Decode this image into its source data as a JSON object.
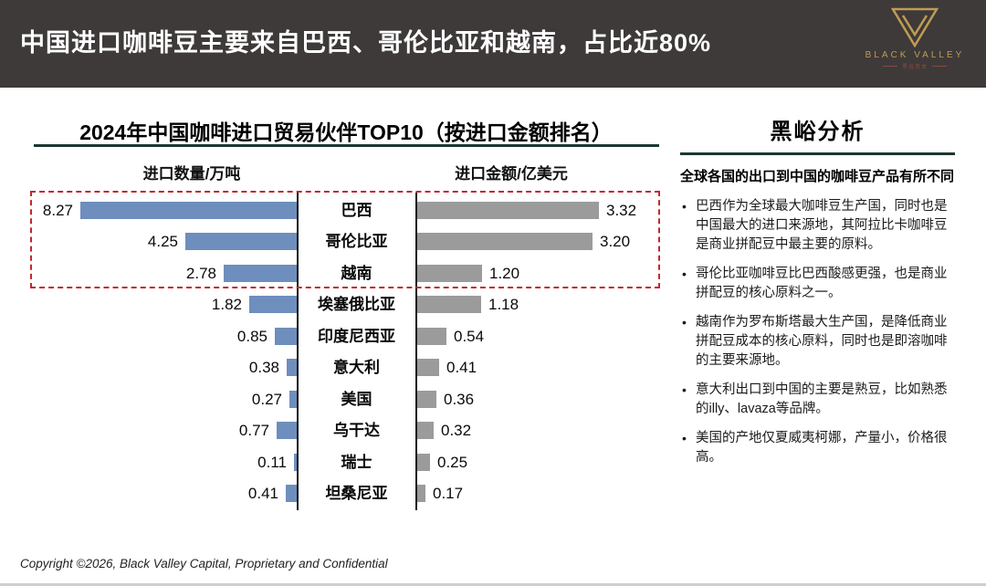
{
  "header": {
    "title": "中国进口咖啡豆主要来自巴西、哥伦比亚和越南，占比近80%",
    "logo": {
      "brand": "BLACK VALLEY",
      "sub": "黑谷资本"
    }
  },
  "chart_data": {
    "type": "bar",
    "orientation": "tornado",
    "title": "2024年中国咖啡进口贸易伙伴TOP10（按进口金额排名）",
    "left_axis_label": "进口数量/万吨",
    "right_axis_label": "进口金额/亿美元",
    "categories": [
      "巴西",
      "哥伦比亚",
      "越南",
      "埃塞俄比亚",
      "印度尼西亚",
      "意大利",
      "美国",
      "乌干达",
      "瑞士",
      "坦桑尼亚"
    ],
    "series": [
      {
        "name": "进口数量/万吨",
        "side": "left",
        "color": "#6e8ebd",
        "values": [
          8.27,
          4.25,
          2.78,
          1.82,
          0.85,
          0.38,
          0.27,
          0.77,
          0.11,
          0.41
        ]
      },
      {
        "name": "进口金额/亿美元",
        "side": "right",
        "color": "#9b9b9b",
        "values": [
          3.32,
          3.2,
          1.2,
          1.18,
          0.54,
          0.41,
          0.36,
          0.32,
          0.25,
          0.17
        ]
      }
    ],
    "highlight": {
      "rows": [
        "巴西",
        "哥伦比亚",
        "越南"
      ],
      "style": "red-dashed-box"
    },
    "value_format": "2-decimals",
    "grid": false,
    "legend": "none"
  },
  "analysis": {
    "title": "黑峪分析",
    "intro": "全球各国的出口到中国的咖啡豆产品有所不同",
    "bullets": [
      "巴西作为全球最大咖啡豆生产国，同时也是中国最大的进口来源地，其阿拉比卡咖啡豆是商业拼配豆中最主要的原料。",
      "哥伦比亚咖啡豆比巴西酸感更强，也是商业拼配豆的核心原料之一。",
      "越南作为罗布斯塔最大生产国，是降低商业拼配豆成本的核心原料，同时也是即溶咖啡的主要来源地。",
      "意大利出口到中国的主要是熟豆，比如熟悉的illy、lavaza等品牌。",
      "美国的产地仅夏威夷柯娜，产量小，价格很高。"
    ]
  },
  "footer": {
    "copyright": "Copyright ©2026, Black Valley Capital, Proprietary and Confidential"
  },
  "colors": {
    "header_bg": "#3e3a39",
    "quantity_bar": "#6e8ebd",
    "amount_bar": "#9b9b9b",
    "highlight_border": "#c4272e",
    "rule": "#1c3733",
    "brand_gold": "#bf9c55"
  }
}
